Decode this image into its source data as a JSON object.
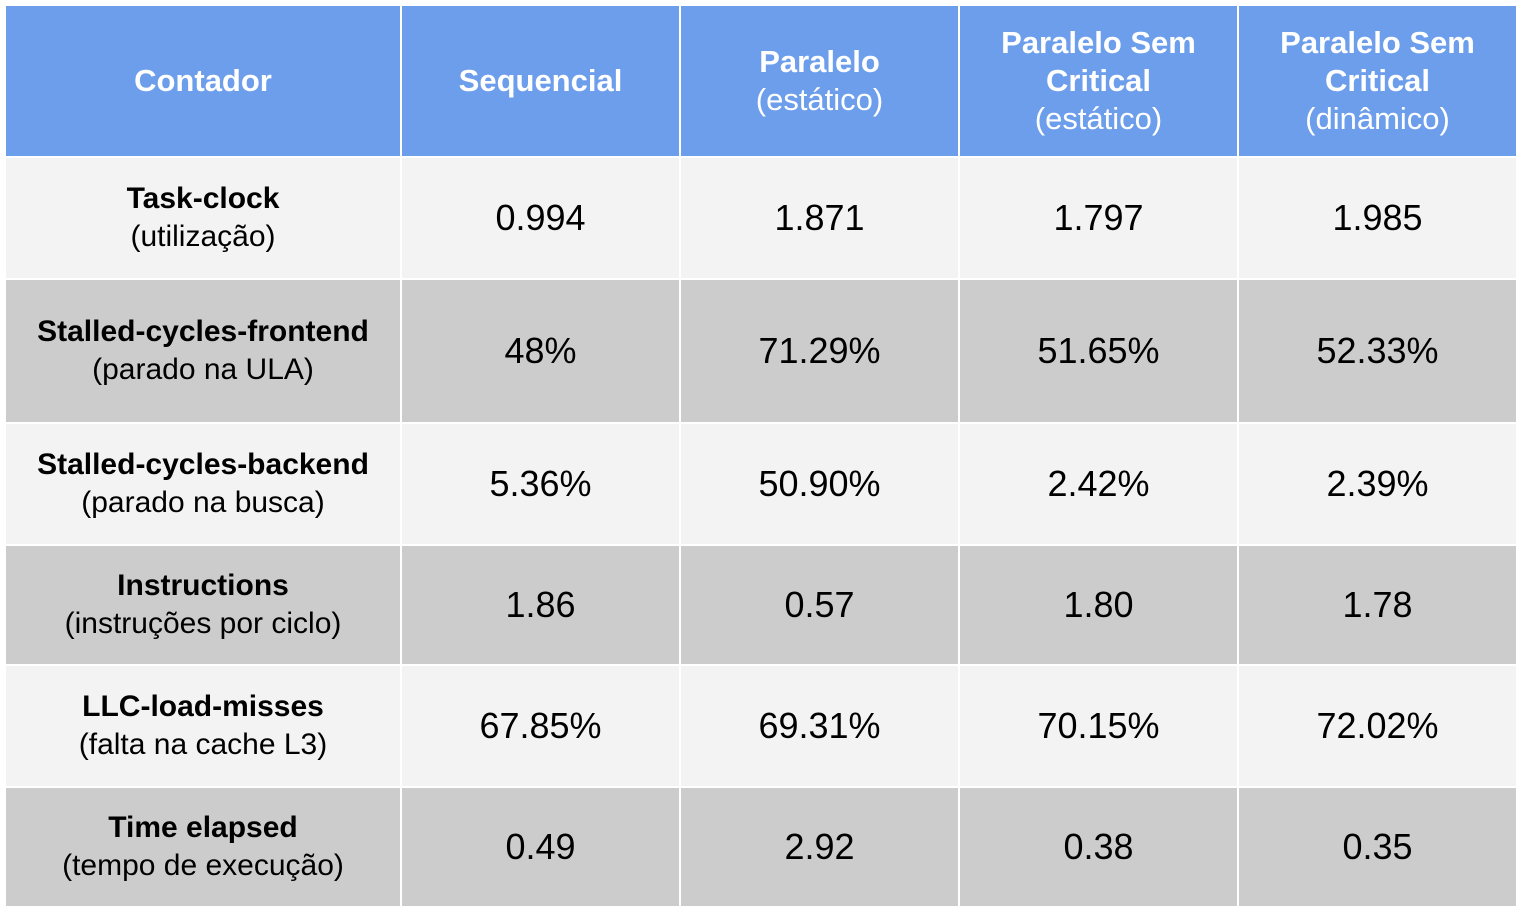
{
  "header": {
    "col0": {
      "title": "Contador"
    },
    "col1": {
      "title": "Sequencial"
    },
    "col2": {
      "title": "Paralelo",
      "subtitle": "(estático)"
    },
    "col3": {
      "title": "Paralelo Sem Critical",
      "subtitle": "(estático)"
    },
    "col4": {
      "title": "Paralelo Sem Critical",
      "subtitle": "(dinâmico)"
    }
  },
  "rows": [
    {
      "name": "Task-clock",
      "desc": "(utilização)",
      "values": [
        "0.994",
        "1.871",
        "1.797",
        "1.985"
      ]
    },
    {
      "name": "Stalled-cycles-frontend",
      "desc": "(parado na ULA)",
      "values": [
        "48%",
        "71.29%",
        "51.65%",
        "52.33%"
      ]
    },
    {
      "name": "Stalled-cycles-backend",
      "desc": "(parado na busca)",
      "values": [
        "5.36%",
        "50.90%",
        "2.42%",
        "2.39%"
      ]
    },
    {
      "name": "Instructions",
      "desc": "(instruções por ciclo)",
      "values": [
        "1.86",
        "0.57",
        "1.80",
        "1.78"
      ]
    },
    {
      "name": "LLC-load-misses",
      "desc": "(falta na cache L3)",
      "values": [
        "67.85%",
        "69.31%",
        "70.15%",
        "72.02%"
      ]
    },
    {
      "name": "Time elapsed",
      "desc": "(tempo de execução)",
      "values": [
        "0.49",
        "2.92",
        "0.38",
        "0.35"
      ]
    }
  ],
  "colors": {
    "header_bg": "#6d9eeb",
    "header_text": "#ffffff",
    "row_light": "#f3f3f3",
    "row_dark": "#cccccc",
    "grid": "#ffffff"
  }
}
